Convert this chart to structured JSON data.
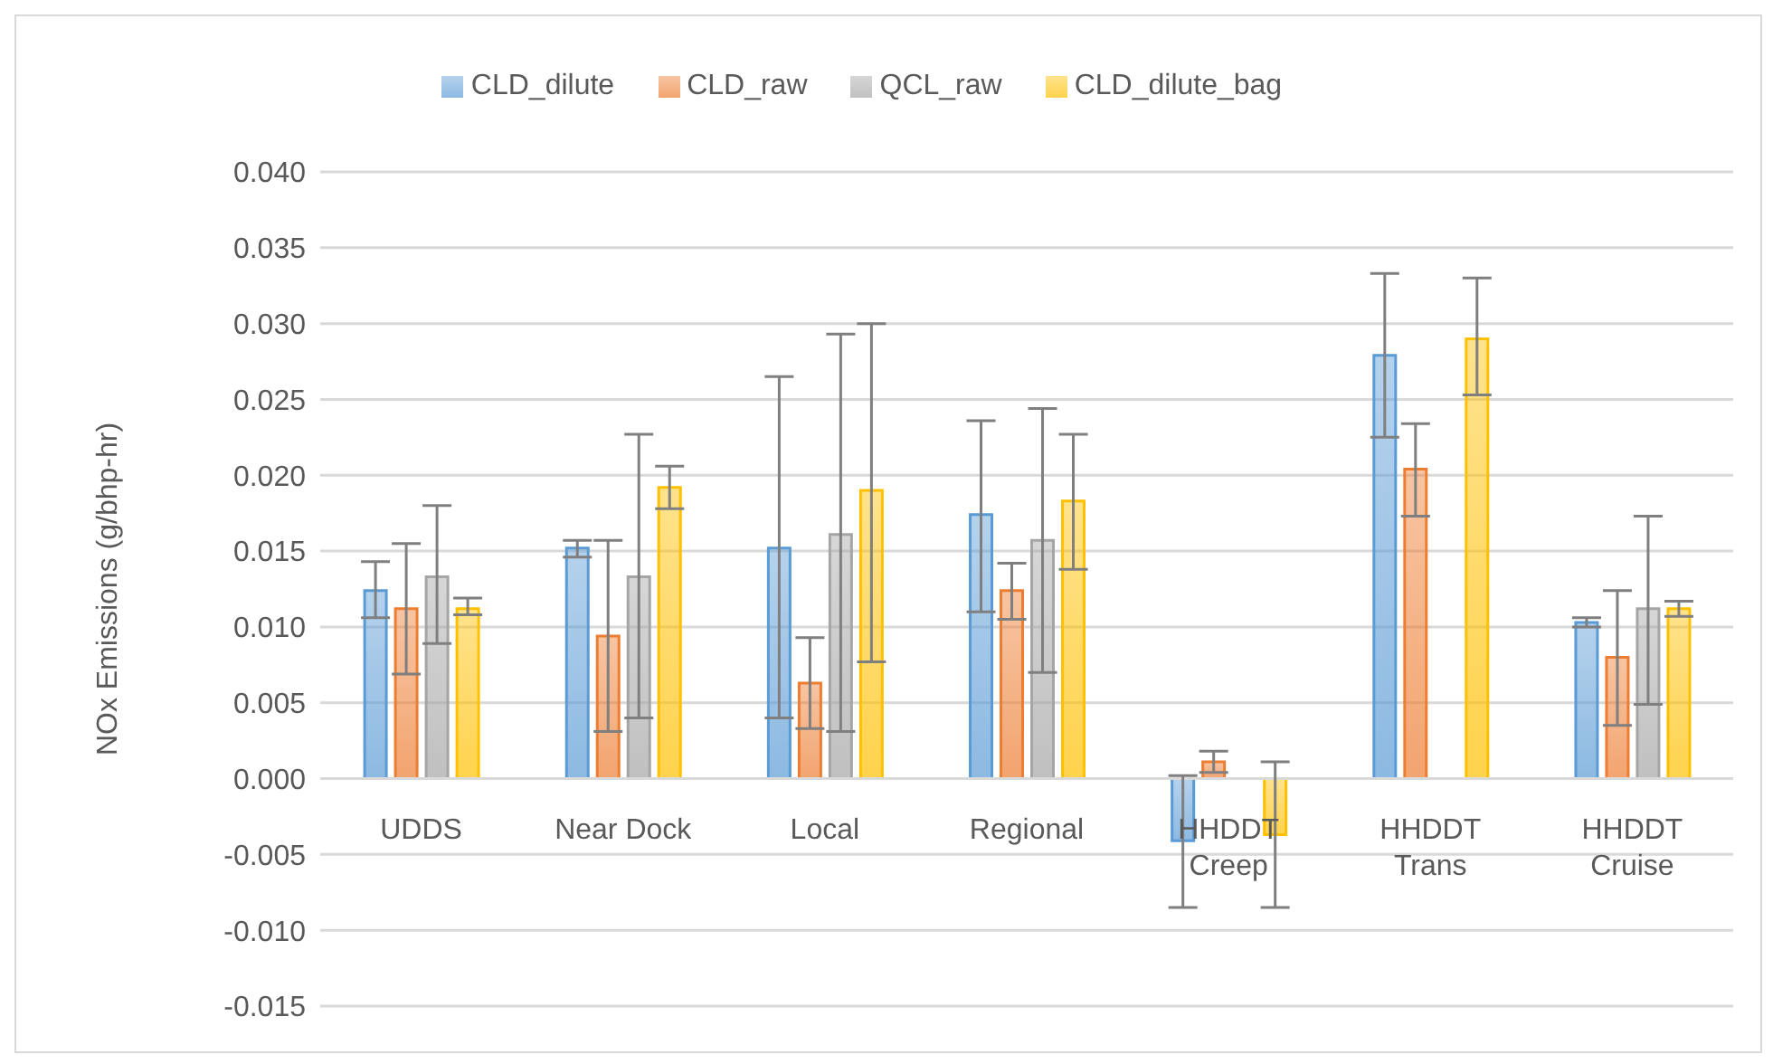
{
  "chart_data": {
    "type": "bar",
    "ylabel": "NOx Emissions (g/bhp-hr)",
    "categories": [
      "UDDS",
      "Near Dock",
      "Local",
      "Regional",
      "HHDDT Creep",
      "HHDDT Trans",
      "HHDDT Cruise"
    ],
    "series": [
      {
        "name": "CLD_dilute",
        "color": "#5b9bd5",
        "values": [
          0.0124,
          0.0152,
          0.0152,
          0.0174,
          -0.0041,
          0.0279,
          0.0103
        ],
        "errors": [
          [
            0.0106,
            0.0143
          ],
          [
            0.0146,
            0.0157
          ],
          [
            0.004,
            0.0265
          ],
          [
            0.011,
            0.0236
          ],
          [
            -0.0085,
            0.0002
          ],
          [
            0.0225,
            0.0333
          ],
          [
            0.01,
            0.0106
          ]
        ]
      },
      {
        "name": "CLD_raw",
        "color": "#ed7d31",
        "values": [
          0.0112,
          0.0094,
          0.0063,
          0.0124,
          0.0011,
          0.0204,
          0.008
        ],
        "errors": [
          [
            0.0069,
            0.0155
          ],
          [
            0.0031,
            0.0157
          ],
          [
            0.0033,
            0.0093
          ],
          [
            0.0105,
            0.0142
          ],
          [
            0.0004,
            0.0018
          ],
          [
            0.0173,
            0.0234
          ],
          [
            0.0035,
            0.0124
          ]
        ]
      },
      {
        "name": "QCL_raw",
        "color": "#a5a5a5",
        "values": [
          0.0133,
          0.0133,
          0.0161,
          0.0157,
          null,
          null,
          0.0112
        ],
        "errors": [
          [
            0.0089,
            0.018
          ],
          [
            0.004,
            0.0227
          ],
          [
            0.0031,
            0.0293
          ],
          [
            0.007,
            0.0244
          ],
          null,
          null,
          [
            0.0049,
            0.0173
          ]
        ]
      },
      {
        "name": "CLD_dilute_bag",
        "color": "#ffc000",
        "values": [
          0.0112,
          0.0192,
          0.019,
          0.0183,
          -0.0037,
          0.029,
          0.0112
        ],
        "errors": [
          [
            0.0108,
            0.0119
          ],
          [
            0.0178,
            0.0206
          ],
          [
            0.0077,
            0.03
          ],
          [
            0.0138,
            0.0227
          ],
          [
            -0.0085,
            0.0011
          ],
          [
            0.0253,
            0.033
          ],
          [
            0.0107,
            0.0117
          ]
        ]
      }
    ],
    "ylim": [
      -0.015,
      0.04
    ],
    "yticks": [
      {
        "value": -0.015,
        "label": "-0.015"
      },
      {
        "value": -0.01,
        "label": "-0.010"
      },
      {
        "value": -0.005,
        "label": "-0.005"
      },
      {
        "value": 0,
        "label": "0.000"
      },
      {
        "value": 0.005,
        "label": "0.005"
      },
      {
        "value": 0.01,
        "label": "0.010"
      },
      {
        "value": 0.015,
        "label": "0.015"
      },
      {
        "value": 0.02,
        "label": "0.020"
      },
      {
        "value": 0.025,
        "label": "0.025"
      },
      {
        "value": 0.03,
        "label": "0.030"
      },
      {
        "value": 0.035,
        "label": "0.035"
      },
      {
        "value": 0.04,
        "label": "0.040"
      }
    ],
    "grid": "y",
    "legend": "top"
  }
}
